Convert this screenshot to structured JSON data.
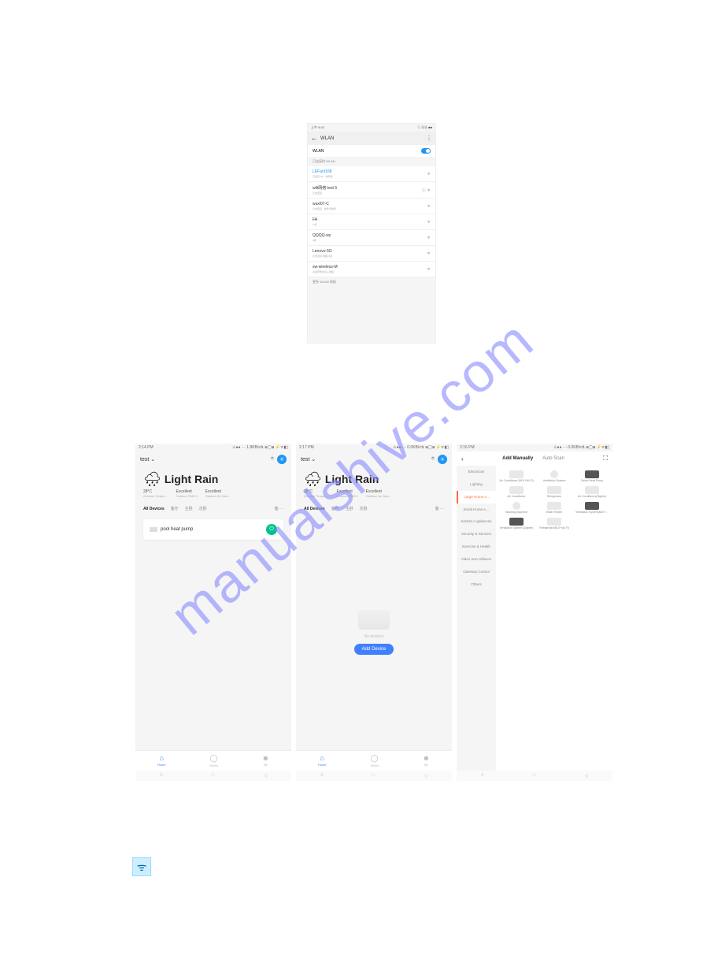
{
  "watermark": "manualshive.com",
  "wlan": {
    "time": "上午 5:42",
    "status_right": "ⓘ ⓈⓊ ■■",
    "title": "WLAN",
    "more": "⋮",
    "toggle_on": true,
    "section_connected": "已连接的 WLAN",
    "networks": [
      {
        "name": "LEFant168",
        "sub": "已连接 5G · 信号强",
        "active": true,
        "icons": "ᯤ"
      },
      {
        "name": "wifi网络-test 5",
        "sub": "点击连接",
        "active": false,
        "icons": "ⓘ ᯤ"
      },
      {
        "name": "wuxi07-C",
        "sub": "点击连接 · 信号比较弱",
        "active": false,
        "icons": "ᯤ"
      },
      {
        "name": "FA",
        "sub": "4 栋",
        "active": false,
        "icons": "ᯤ"
      },
      {
        "name": "QQQQ-wy",
        "sub": "3栋",
        "active": false,
        "icons": "ᯤ"
      },
      {
        "name": "Lenovo-5G",
        "sub": "点击连接 网络可用",
        "active": false,
        "icons": "ᯤ"
      },
      {
        "name": "sw-wireless-M",
        "sub": "请先登录并接入网络",
        "active": false,
        "icons": "ᯤ"
      }
    ],
    "more_networks": "更多 WLAN 网络"
  },
  "home": {
    "time1": "2:14 PM",
    "time2": "2:17 PM",
    "time3": "2:16 PM",
    "status_icons": "⚠●● ··· 1.8KB/s⇅ ⧈◯⧈ ⚡ᯤ▮▯",
    "status_icons2": "⚠●● ··· 0.0KB/s⇅ ⧈◯⧈ ⚡ᯤ▮▯",
    "dropdown": "test ⌄",
    "weather_title": "Light Rain",
    "stats": [
      {
        "val": "28°C",
        "lbl": "Outdoor Tempe…"
      },
      {
        "val": "Excellent",
        "lbl": "Outdoor PM2.5"
      },
      {
        "val": "Excellent",
        "lbl": "Outdoor Air Qua…"
      }
    ],
    "tabs": [
      "All Devices",
      "客厅",
      "主卧",
      "次卧"
    ],
    "tabs_extra": "客 ···",
    "device_name": "pool heat pump",
    "empty_text": "No devices",
    "add_btn": "Add Device",
    "nav": [
      {
        "lbl": "Home",
        "icon": "⌂"
      },
      {
        "lbl": "Smart",
        "icon": "◯"
      },
      {
        "lbl": "Me",
        "icon": "☻"
      }
    ],
    "sys": [
      "≡",
      "□",
      "◁"
    ]
  },
  "add": {
    "add_manually": "Add Manually",
    "auto_scan": "Auto Scan",
    "scan_icon": "⛶",
    "cats": [
      "Electrician",
      "Lighting",
      "Large Home A…",
      "Small Home A…",
      "Kitchen A ppliances",
      "Security & Sensors",
      "Exercise & Health",
      "Video Surv eillance",
      "Gateway Control",
      "Others"
    ],
    "active_cat": 2,
    "devices": [
      {
        "lbl": "Air Conditioner (BLE+Wi-Fi)",
        "cls": ""
      },
      {
        "lbl": "Ventilation System",
        "cls": "circle"
      },
      {
        "lbl": "Smart Heat Pump",
        "cls": "dark"
      },
      {
        "lbl": "Air Conditioner",
        "cls": ""
      },
      {
        "lbl": "Refrigerator",
        "cls": ""
      },
      {
        "lbl": "Air Conditioner(Zigbee)",
        "cls": ""
      },
      {
        "lbl": "Washing Machine",
        "cls": "circle"
      },
      {
        "lbl": "Water Heater",
        "cls": ""
      },
      {
        "lbl": "Ventilation System(BLE+…",
        "cls": "dark"
      },
      {
        "lbl": "Ventilation System (Zigbee)",
        "cls": "dark"
      },
      {
        "lbl": "Refrigerator(BLE+Wi-Fi)",
        "cls": ""
      }
    ]
  },
  "wifi_glyph": "ᯤ"
}
